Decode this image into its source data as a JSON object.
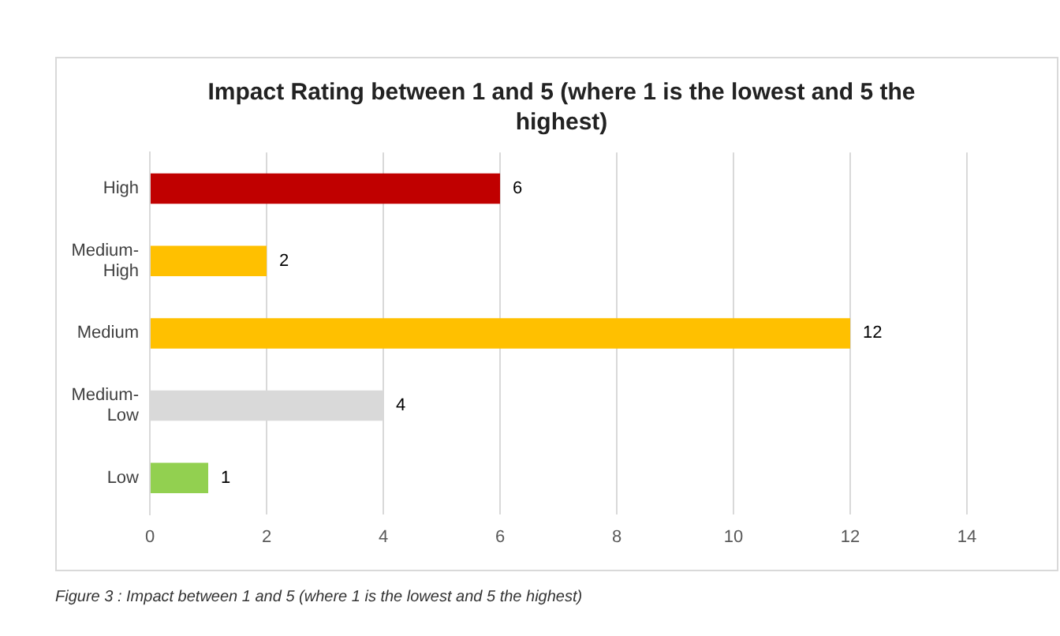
{
  "chart_data": {
    "type": "bar",
    "orientation": "horizontal",
    "title": "Impact Rating between 1 and 5 (where 1 is the lowest and 5 the highest)",
    "categories": [
      "High",
      "Medium-High",
      "Medium",
      "Medium-Low",
      "Low"
    ],
    "values": [
      6,
      2,
      12,
      4,
      1
    ],
    "colors": [
      "#c00000",
      "#ffc000",
      "#ffc000",
      "#d9d9d9",
      "#92d050"
    ],
    "xlim": [
      0,
      14
    ],
    "xticks": [
      0,
      2,
      4,
      6,
      8,
      10,
      12,
      14
    ],
    "grid": "x",
    "data_labels": true,
    "annotations": [
      "Figure 3 : Impact between 1 and 5 (where 1 is the lowest and 5 the highest)"
    ]
  }
}
